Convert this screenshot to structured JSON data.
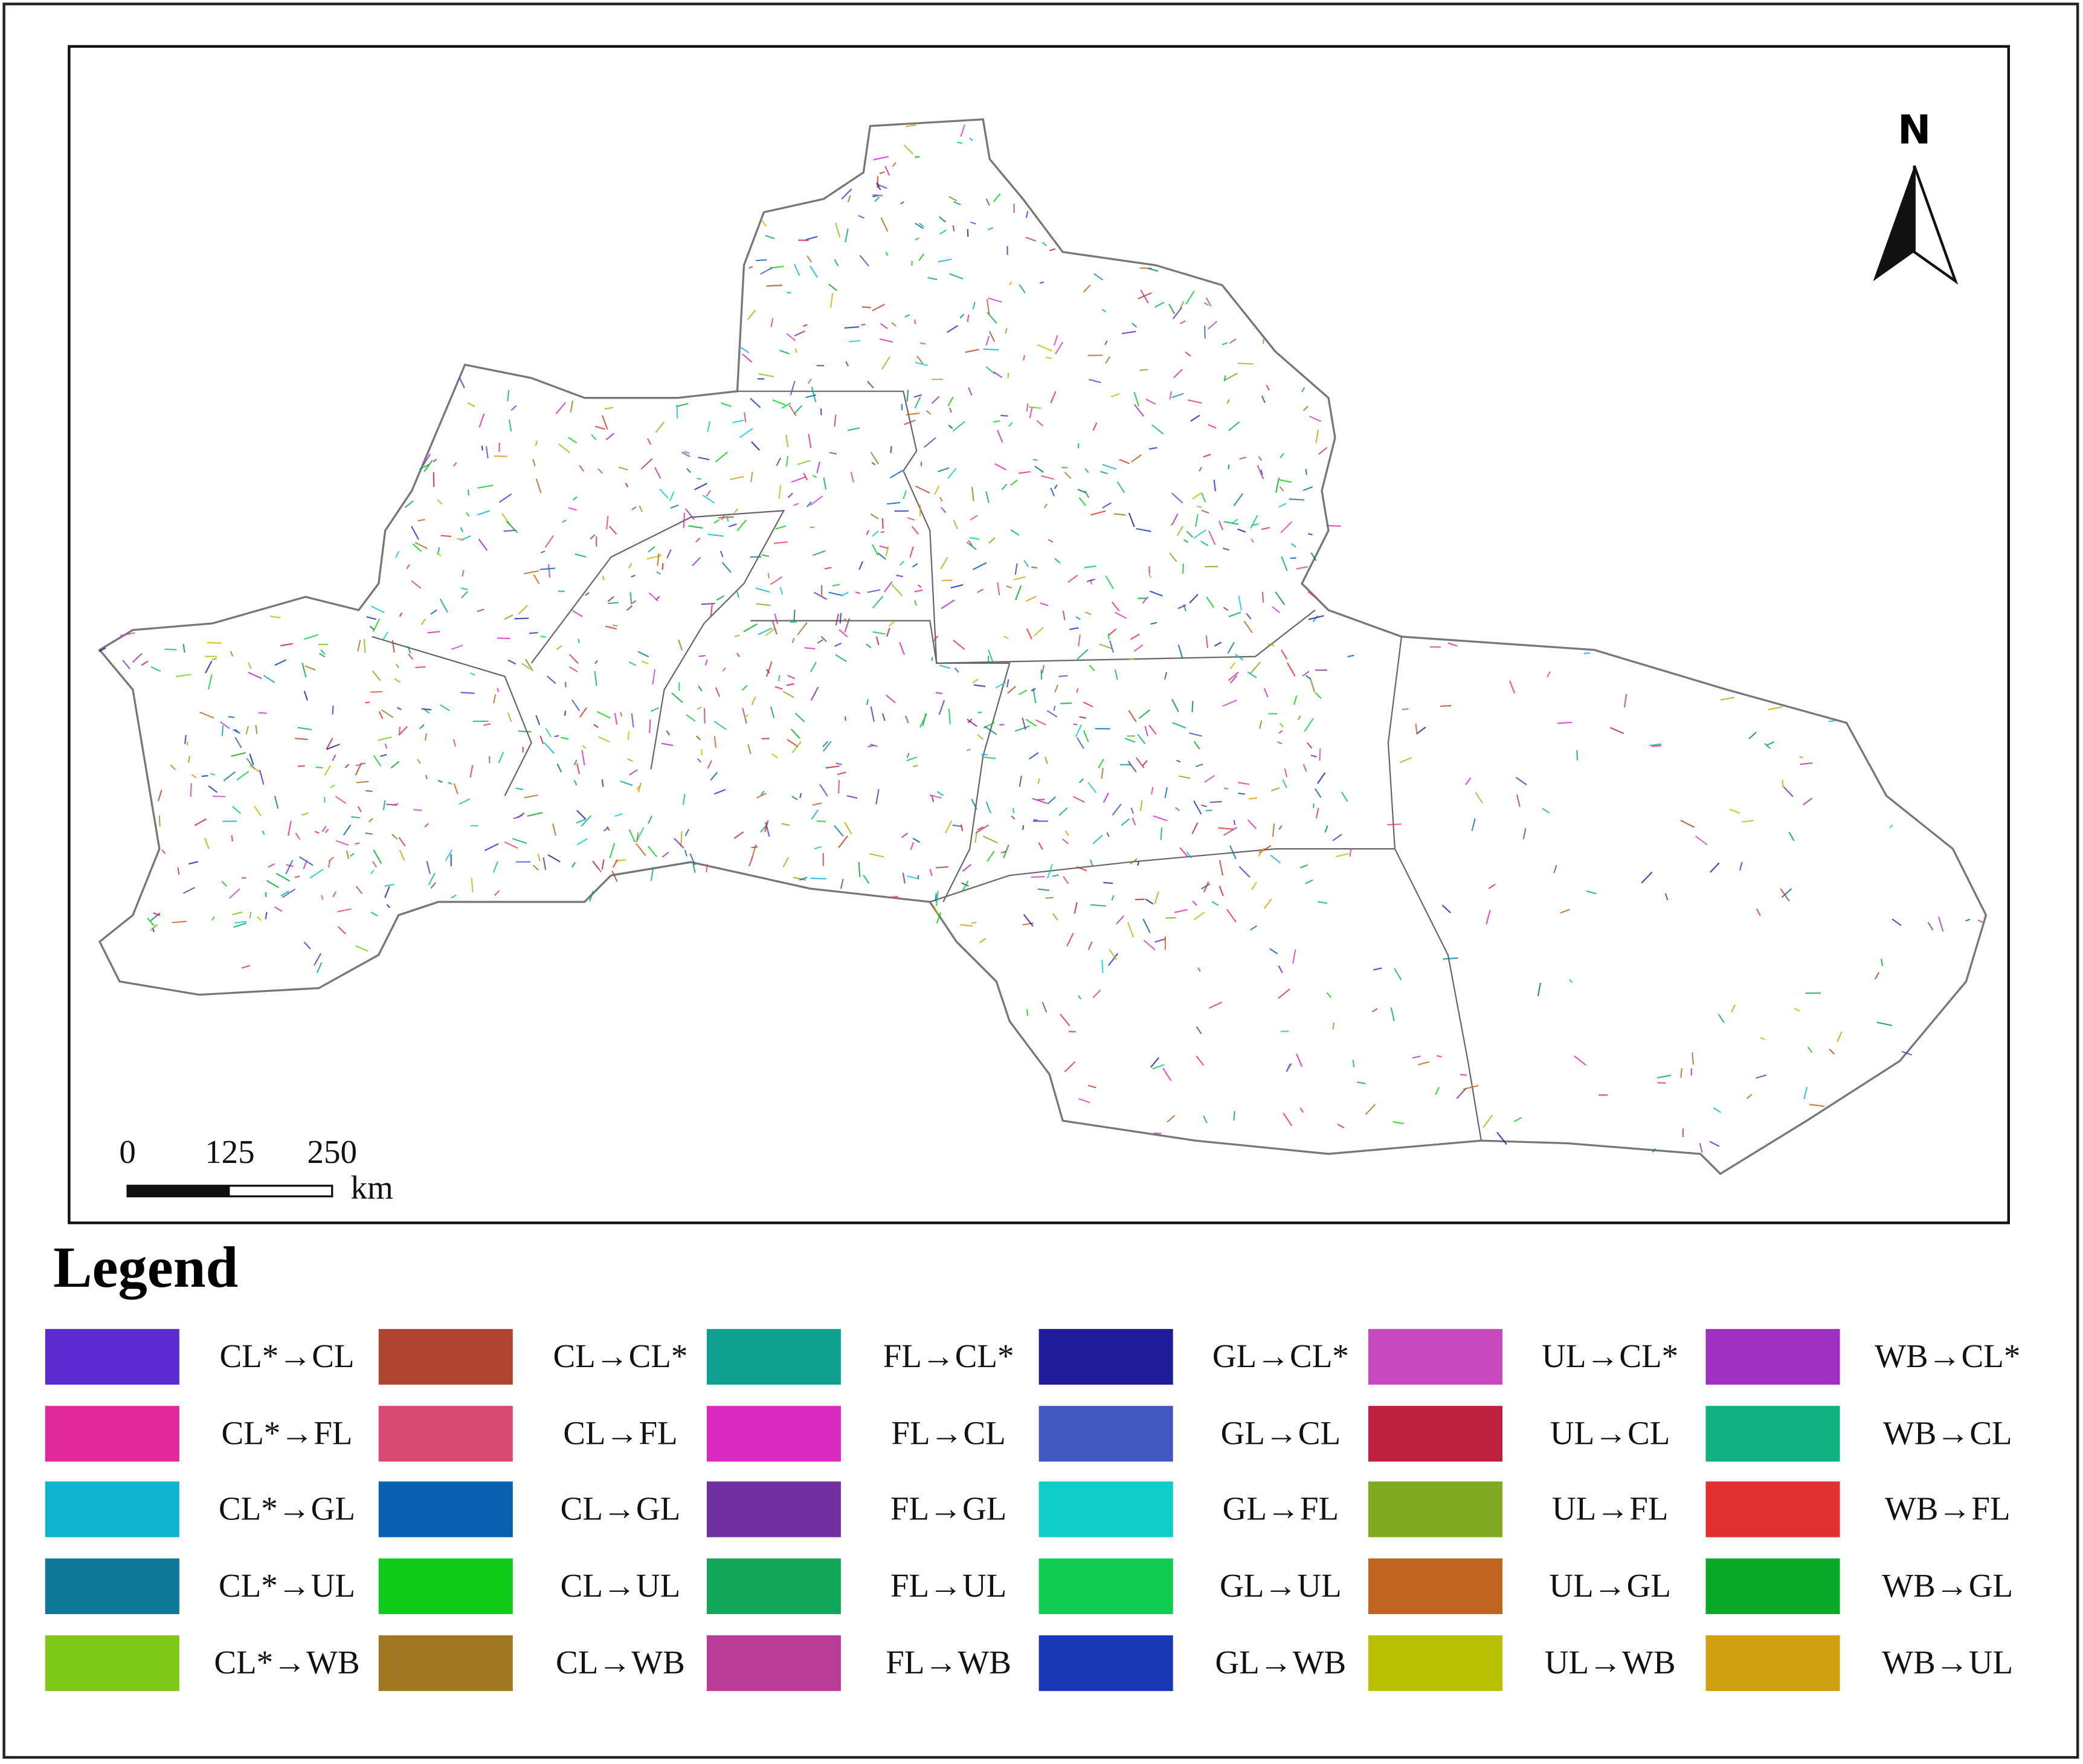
{
  "map": {
    "north_label": "N",
    "scale_bar": {
      "ticks": [
        0,
        125,
        250
      ],
      "unit": "km"
    },
    "legend": {
      "title": "Legend",
      "items": [
        {
          "label": "CL*→CL",
          "color": "#5b2bd0"
        },
        {
          "label": "CL*→FL",
          "color": "#e0289a"
        },
        {
          "label": "CL*→GL",
          "color": "#10b4d0"
        },
        {
          "label": "CL*→UL",
          "color": "#0e7898"
        },
        {
          "label": "CL*→WB",
          "color": "#80c818"
        },
        {
          "label": "CL→CL*",
          "color": "#b04430"
        },
        {
          "label": "CL→FL",
          "color": "#d84870"
        },
        {
          "label": "CL→GL",
          "color": "#0860b0"
        },
        {
          "label": "CL→UL",
          "color": "#10cc18"
        },
        {
          "label": "CL→WB",
          "color": "#a07820"
        },
        {
          "label": "FL→CL*",
          "color": "#10a090"
        },
        {
          "label": "FL→CL",
          "color": "#d82cc0"
        },
        {
          "label": "FL→GL",
          "color": "#7030a0"
        },
        {
          "label": "FL→UL",
          "color": "#10a858"
        },
        {
          "label": "FL→WB",
          "color": "#b83c98"
        },
        {
          "label": "GL→CL*",
          "color": "#201c98"
        },
        {
          "label": "GL→CL",
          "color": "#4058c0"
        },
        {
          "label": "GL→FL",
          "color": "#10ccc8"
        },
        {
          "label": "GL→UL",
          "color": "#10cc50"
        },
        {
          "label": "GL→WB",
          "color": "#1838b8"
        },
        {
          "label": "UL→CL*",
          "color": "#c848c0"
        },
        {
          "label": "UL→CL",
          "color": "#c02040"
        },
        {
          "label": "UL→FL",
          "color": "#80a820"
        },
        {
          "label": "UL→GL",
          "color": "#c06420"
        },
        {
          "label": "UL→WB",
          "color": "#b8c000"
        },
        {
          "label": "WB→CL*",
          "color": "#a030c0"
        },
        {
          "label": "WB→CL",
          "color": "#10b080"
        },
        {
          "label": "WB→FL",
          "color": "#e03030"
        },
        {
          "label": "WB→GL",
          "color": "#08a828"
        },
        {
          "label": "WB→UL",
          "color": "#d0a010"
        }
      ]
    }
  }
}
